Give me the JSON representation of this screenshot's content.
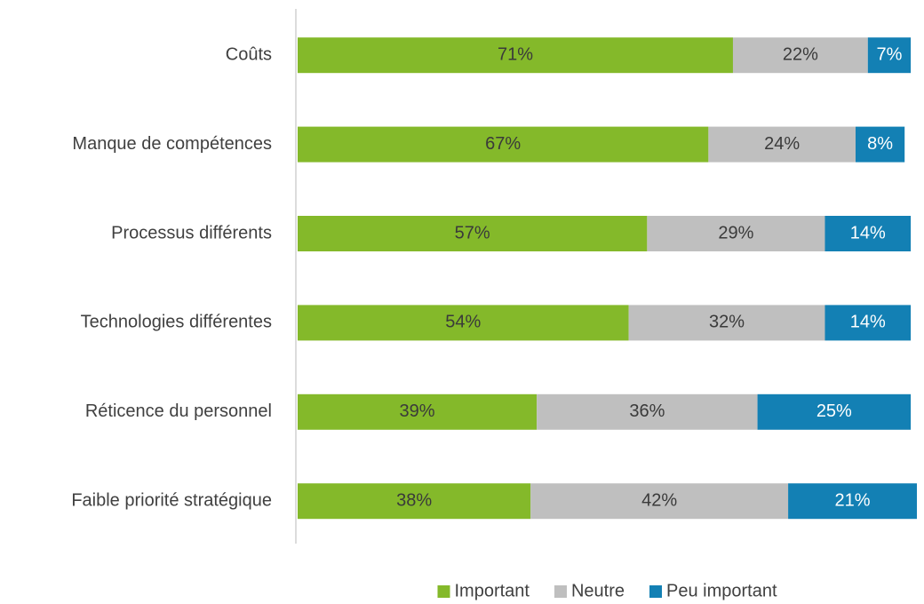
{
  "chart_data": {
    "type": "stacked_barh",
    "categories": [
      "Coûts",
      "Manque de compétences",
      "Processus différents",
      "Technologies différentes",
      "Réticence du personnel",
      "Faible priorité stratégique"
    ],
    "series": [
      {
        "name": "Important",
        "color": "#84b92a",
        "label_color": "#3a3a3a",
        "values": [
          71,
          67,
          57,
          54,
          39,
          38
        ],
        "value_labels": [
          "71%",
          "67%",
          "57%",
          "54%",
          "39%",
          "38%"
        ]
      },
      {
        "name": "Neutre",
        "color": "#bfbfbf",
        "label_color": "#3a3a3a",
        "values": [
          22,
          24,
          29,
          32,
          36,
          42
        ],
        "value_labels": [
          "22%",
          "24%",
          "29%",
          "32%",
          "36%",
          "42%"
        ]
      },
      {
        "name": "Peu important",
        "color": "#1380b4",
        "label_color": "#ffffff",
        "values": [
          7,
          8,
          14,
          14,
          25,
          21
        ],
        "value_labels": [
          "7%",
          "8%",
          "14%",
          "14%",
          "25%",
          "21%"
        ]
      }
    ],
    "legend": "bottom"
  }
}
